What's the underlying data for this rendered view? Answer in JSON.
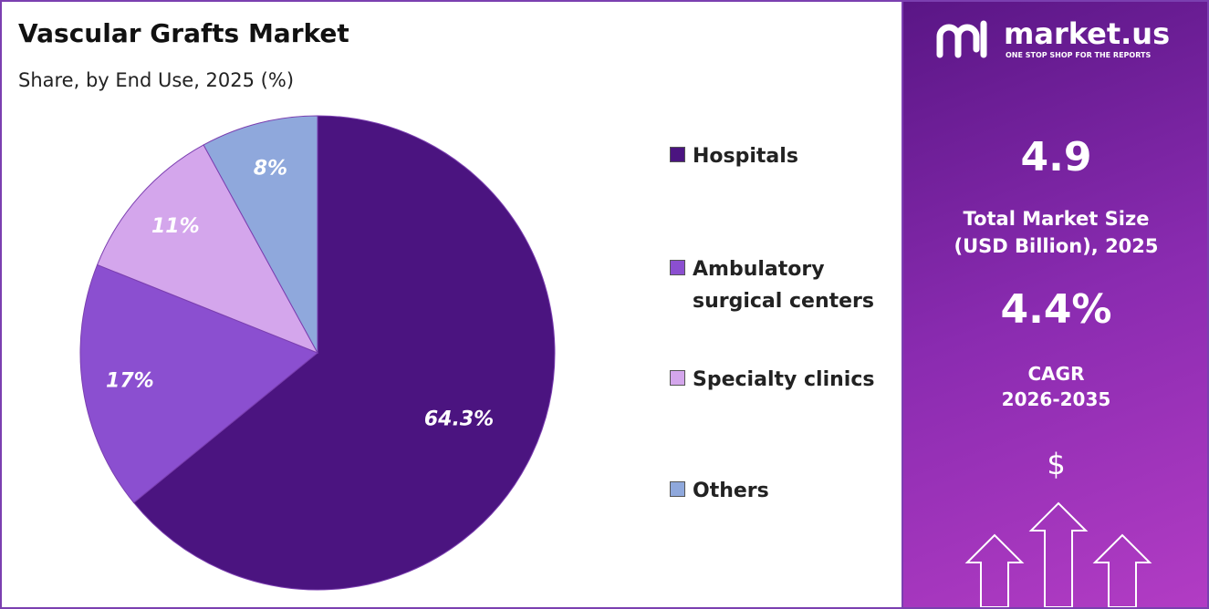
{
  "chart_data": {
    "type": "pie",
    "title": "Vascular Grafts Market",
    "subtitle": "Share, by End Use, 2025 (%)",
    "categories": [
      "Hospitals",
      "Ambulatory surgical centers",
      "Specialty clinics",
      "Others"
    ],
    "values": [
      64.3,
      17,
      11,
      8
    ],
    "value_labels": [
      "64.3%",
      "17%",
      "11%",
      "8%"
    ],
    "colors": [
      "#4b1480",
      "#8b4fd0",
      "#d4a6ec",
      "#8fa8dc"
    ],
    "legend": "right"
  },
  "panel": {
    "brand": "market.us",
    "tagline": "ONE STOP SHOP FOR THE REPORTS",
    "market_size": "4.9",
    "market_size_label": [
      "Total Market Size",
      "(USD Billion), 2025"
    ],
    "cagr": "4.4%",
    "cagr_label": [
      "CAGR",
      "2026-2035"
    ],
    "icon": "$"
  }
}
